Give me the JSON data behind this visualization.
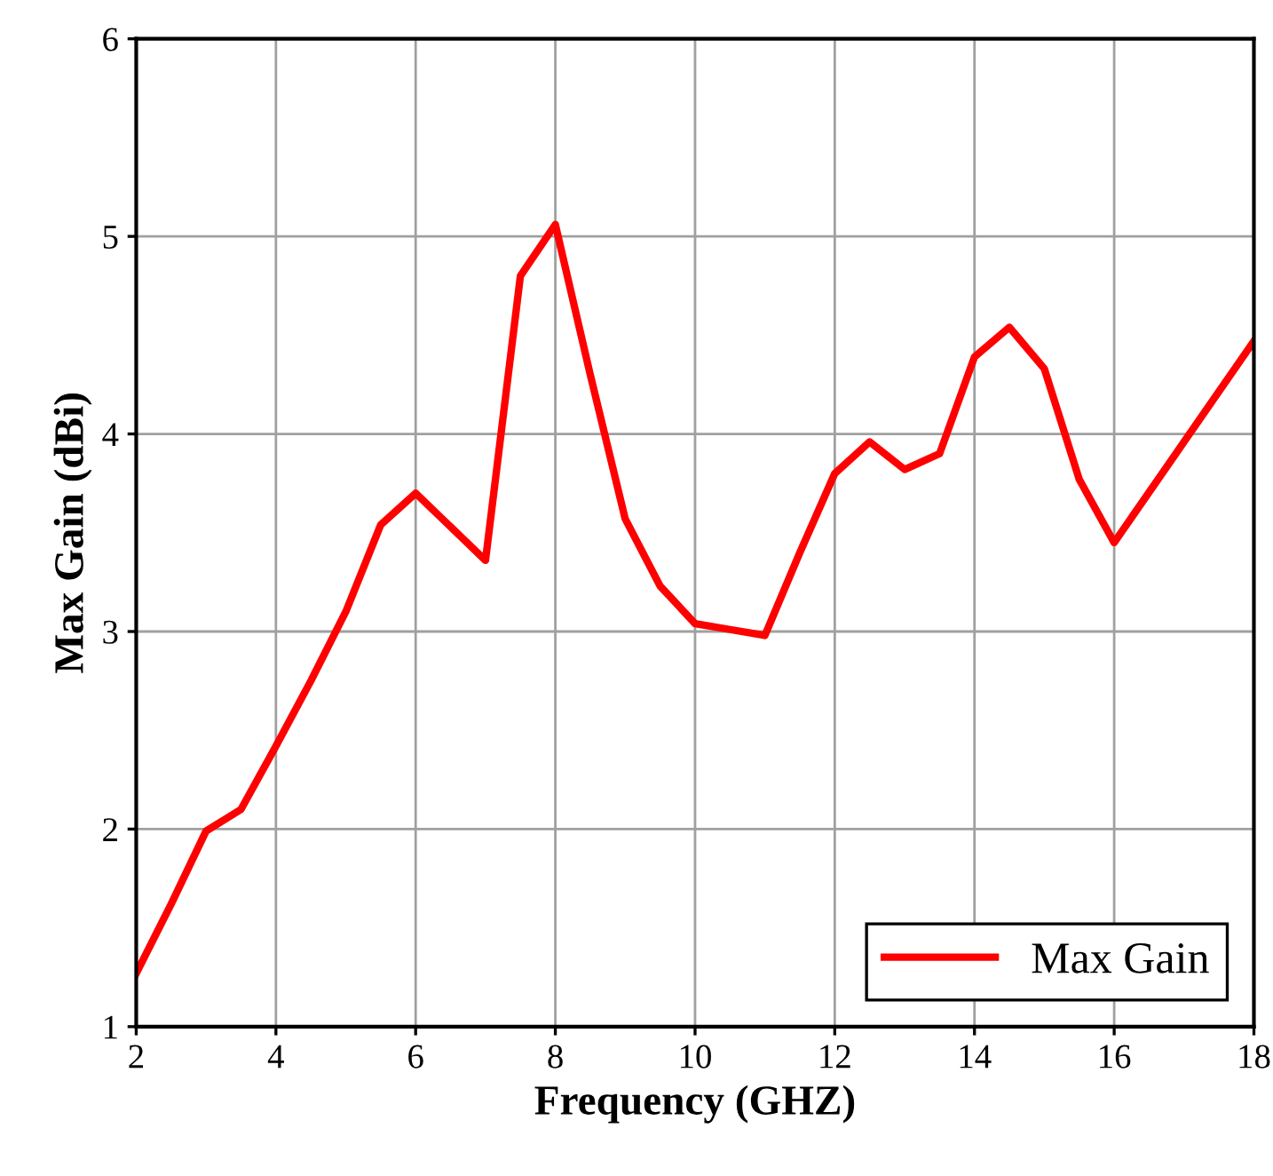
{
  "chart_data": {
    "type": "line",
    "xlabel": "Frequency (GHZ)",
    "ylabel": "Max Gain (dBi)",
    "x": [
      2,
      2.5,
      3,
      3.5,
      4,
      4.5,
      5,
      5.5,
      6,
      6.5,
      7,
      7.5,
      8,
      8.5,
      9,
      9.5,
      10,
      10.5,
      11,
      11.5,
      12,
      12.5,
      13,
      13.5,
      14,
      14.5,
      15,
      15.5,
      16,
      17,
      18
    ],
    "series": [
      {
        "name": "Max Gain",
        "color": "#ff0000",
        "values": [
          1.27,
          1.62,
          1.99,
          2.1,
          2.42,
          2.75,
          3.1,
          3.54,
          3.7,
          3.53,
          3.36,
          4.8,
          5.06,
          4.3,
          3.57,
          3.23,
          3.04,
          3.01,
          2.98,
          3.4,
          3.8,
          3.96,
          3.82,
          3.9,
          4.39,
          4.54,
          4.33,
          3.77,
          3.45,
          3.96,
          4.47
        ]
      }
    ],
    "xlim": [
      2,
      18
    ],
    "xticks": [
      2,
      4,
      6,
      8,
      10,
      12,
      14,
      16,
      18
    ],
    "ylim": [
      1,
      6
    ],
    "yticks": [
      1,
      2,
      3,
      4,
      5,
      6
    ],
    "grid": true,
    "legend": "bottom right",
    "marker": "none",
    "line_style": "solid"
  }
}
